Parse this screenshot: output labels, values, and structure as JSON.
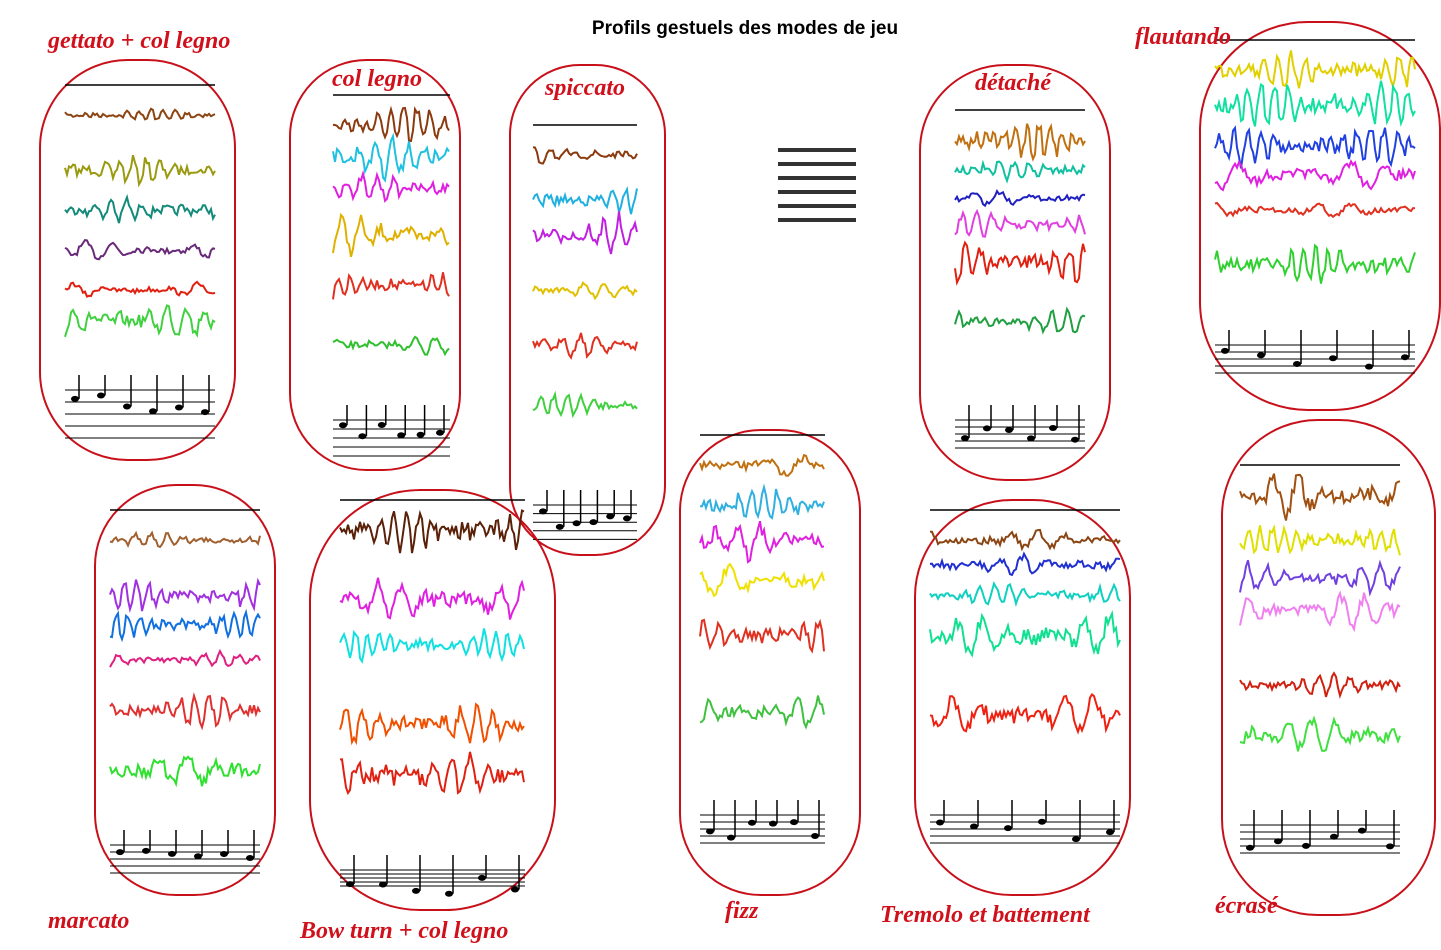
{
  "title": "Profils gestuels des modes de jeu",
  "panels": [
    {
      "label": "gettato + col legno"
    },
    {
      "label": "col legno"
    },
    {
      "label": "spiccato"
    },
    {
      "label": "détaché"
    },
    {
      "label": "flautando"
    },
    {
      "label": "marcato"
    },
    {
      "label": "Bow turn + col legno"
    },
    {
      "label": "fizz"
    },
    {
      "label": "Tremolo et battement"
    },
    {
      "label": "écrasé"
    }
  ]
}
